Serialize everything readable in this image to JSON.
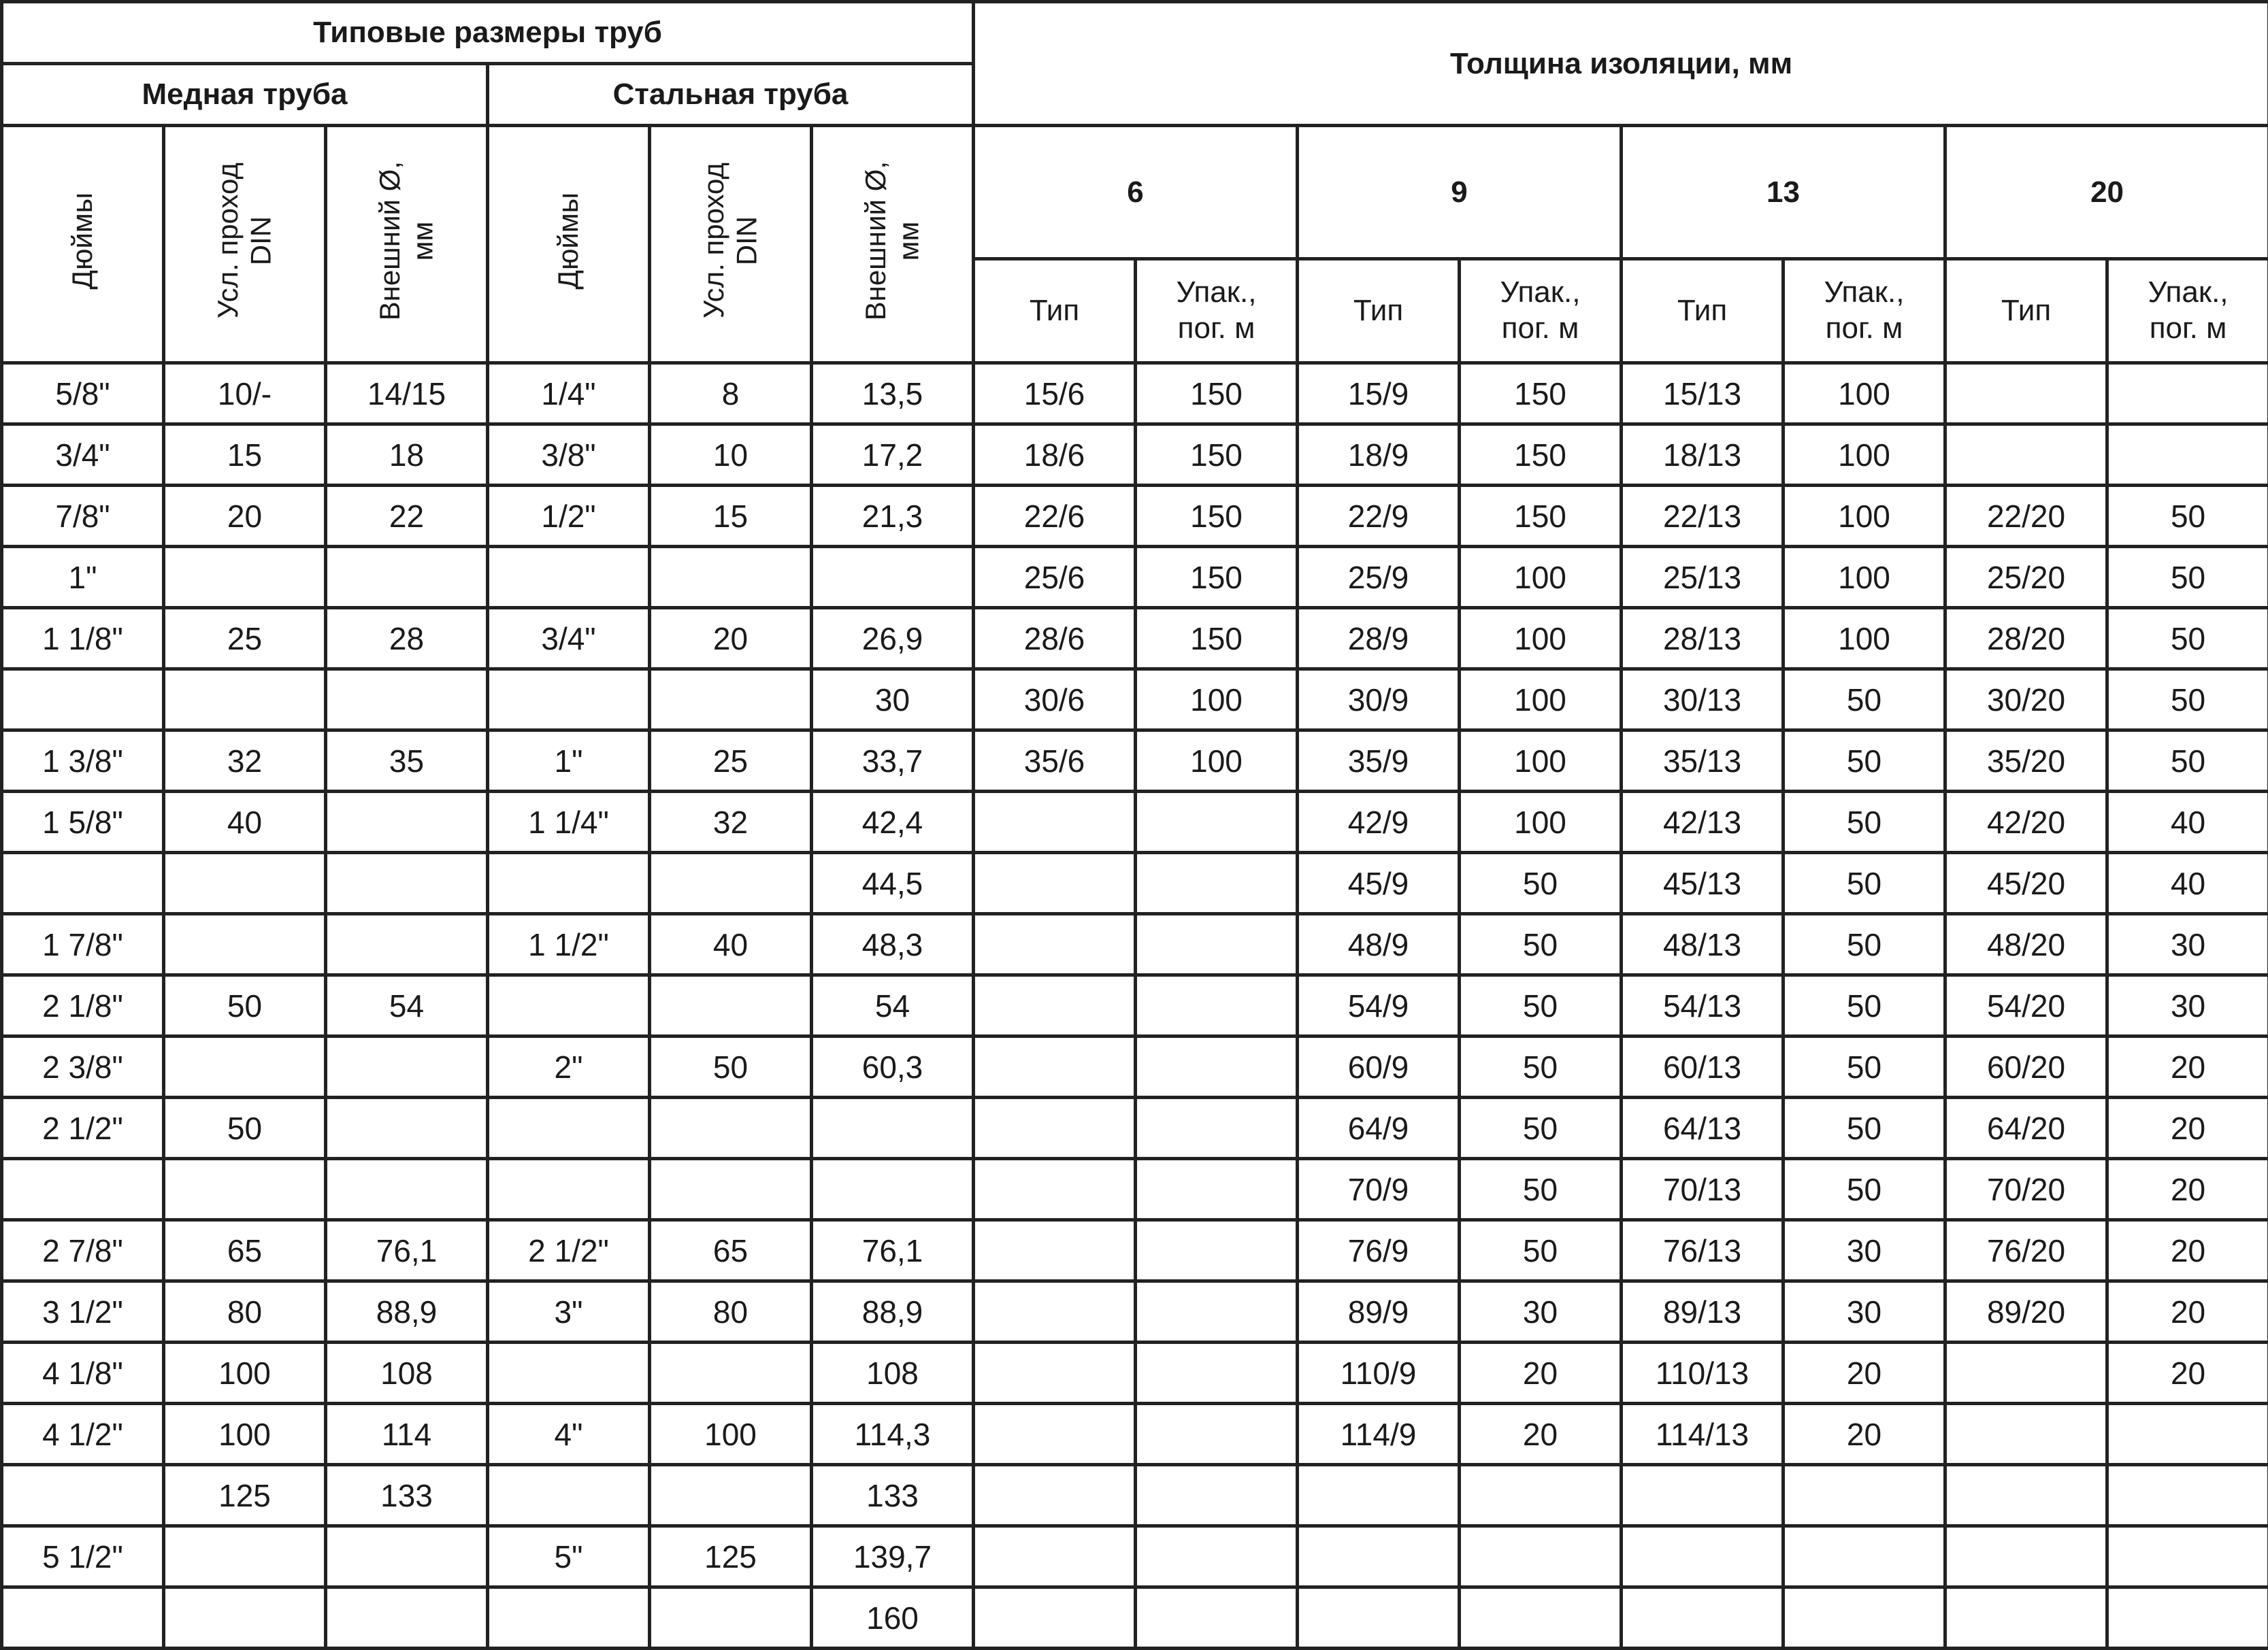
{
  "header": {
    "typical_sizes": "Типовые размеры труб",
    "insulation_thickness": "Толщина изоляции, мм",
    "copper_pipe": "Медная труба",
    "steel_pipe": "Стальная труба",
    "pipe_columns": [
      "Дюймы",
      "Усл. проход\nDIN",
      "Внешний Ø,\nмм",
      "Дюймы",
      "Усл. проход\nDIN",
      "Внешний Ø,\nмм"
    ],
    "thicknesses": [
      "6",
      "9",
      "13",
      "20"
    ],
    "type_label": "Тип",
    "pack_label": "Упак.,\nпог. м"
  },
  "rows": [
    [
      "5/8\"",
      "10/-",
      "14/15",
      "1/4\"",
      "8",
      "13,5",
      "15/6",
      "150",
      "15/9",
      "150",
      "15/13",
      "100",
      "",
      ""
    ],
    [
      "3/4\"",
      "15",
      "18",
      "3/8\"",
      "10",
      "17,2",
      "18/6",
      "150",
      "18/9",
      "150",
      "18/13",
      "100",
      "",
      ""
    ],
    [
      "7/8\"",
      "20",
      "22",
      "1/2\"",
      "15",
      "21,3",
      "22/6",
      "150",
      "22/9",
      "150",
      "22/13",
      "100",
      "22/20",
      "50"
    ],
    [
      "1\"",
      "",
      "",
      "",
      "",
      "",
      "25/6",
      "150",
      "25/9",
      "100",
      "25/13",
      "100",
      "25/20",
      "50"
    ],
    [
      "1 1/8\"",
      "25",
      "28",
      "3/4\"",
      "20",
      "26,9",
      "28/6",
      "150",
      "28/9",
      "100",
      "28/13",
      "100",
      "28/20",
      "50"
    ],
    [
      "",
      "",
      "",
      "",
      "",
      "30",
      "30/6",
      "100",
      "30/9",
      "100",
      "30/13",
      "50",
      "30/20",
      "50"
    ],
    [
      "1 3/8\"",
      "32",
      "35",
      "1\"",
      "25",
      "33,7",
      "35/6",
      "100",
      "35/9",
      "100",
      "35/13",
      "50",
      "35/20",
      "50"
    ],
    [
      "1 5/8\"",
      "40",
      "",
      "1 1/4\"",
      "32",
      "42,4",
      "",
      "",
      "42/9",
      "100",
      "42/13",
      "50",
      "42/20",
      "40"
    ],
    [
      "",
      "",
      "",
      "",
      "",
      "44,5",
      "",
      "",
      "45/9",
      "50",
      "45/13",
      "50",
      "45/20",
      "40"
    ],
    [
      "1 7/8\"",
      "",
      "",
      "1 1/2\"",
      "40",
      "48,3",
      "",
      "",
      "48/9",
      "50",
      "48/13",
      "50",
      "48/20",
      "30"
    ],
    [
      "2 1/8\"",
      "50",
      "54",
      "",
      "",
      "54",
      "",
      "",
      "54/9",
      "50",
      "54/13",
      "50",
      "54/20",
      "30"
    ],
    [
      "2 3/8\"",
      "",
      "",
      "2\"",
      "50",
      "60,3",
      "",
      "",
      "60/9",
      "50",
      "60/13",
      "50",
      "60/20",
      "20"
    ],
    [
      "2 1/2\"",
      "50",
      "",
      "",
      "",
      "",
      "",
      "",
      "64/9",
      "50",
      "64/13",
      "50",
      "64/20",
      "20"
    ],
    [
      "",
      "",
      "",
      "",
      "",
      "",
      "",
      "",
      "70/9",
      "50",
      "70/13",
      "50",
      "70/20",
      "20"
    ],
    [
      "2 7/8\"",
      "65",
      "76,1",
      "2 1/2\"",
      "65",
      "76,1",
      "",
      "",
      "76/9",
      "50",
      "76/13",
      "30",
      "76/20",
      "20"
    ],
    [
      "3 1/2\"",
      "80",
      "88,9",
      "3\"",
      "80",
      "88,9",
      "",
      "",
      "89/9",
      "30",
      "89/13",
      "30",
      "89/20",
      "20"
    ],
    [
      "4 1/8\"",
      "100",
      "108",
      "",
      "",
      "108",
      "",
      "",
      "110/9",
      "20",
      "110/13",
      "20",
      "",
      "20"
    ],
    [
      "4 1/2\"",
      "100",
      "114",
      "4\"",
      "100",
      "114,3",
      "",
      "",
      "114/9",
      "20",
      "114/13",
      "20",
      "",
      ""
    ],
    [
      "",
      "125",
      "133",
      "",
      "",
      "133",
      "",
      "",
      "",
      "",
      "",
      "",
      "",
      ""
    ],
    [
      "5 1/2\"",
      "",
      "",
      "5\"",
      "125",
      "139,7",
      "",
      "",
      "",
      "",
      "",
      "",
      "",
      ""
    ],
    [
      "",
      "",
      "",
      "",
      "",
      "160",
      "",
      "",
      "",
      "",
      "",
      "",
      "",
      ""
    ]
  ]
}
